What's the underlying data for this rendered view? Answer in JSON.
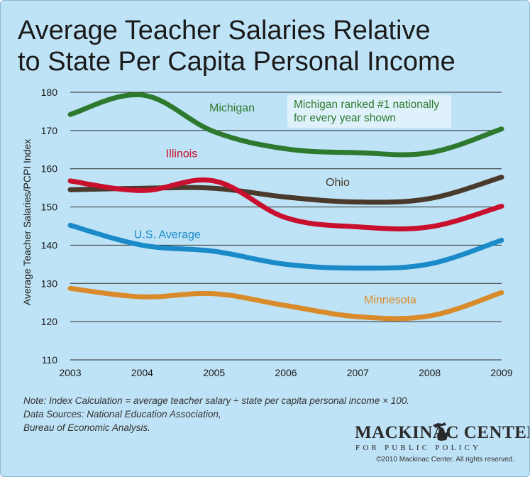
{
  "title_lines": [
    "Average Teacher Salaries Relative",
    "to State Per Capita Personal Income"
  ],
  "callout_lines": [
    "Michigan ranked #1 nationally",
    "for every year shown"
  ],
  "note_lines": [
    "Note: Index Calculation = average teacher salary ÷ state per capita personal income × 100.",
    "Data Sources: National Education Association,",
    "Bureau of Economic Analysis."
  ],
  "logo": {
    "name": "MACKINAC CENTER",
    "sub": "FOR PUBLIC POLICY",
    "copyright": "©2010 Mackinac Center. All rights reserved."
  },
  "chart_data": {
    "type": "line",
    "title": "Average Teacher Salaries Relative to State Per Capita Personal Income",
    "xlabel": "",
    "ylabel": "Average Teacher Salaries/PCPI Index",
    "x": [
      "2003",
      "2004",
      "2005",
      "2006",
      "2007",
      "2008",
      "2009"
    ],
    "ylim": [
      110,
      180
    ],
    "yticks": [
      110,
      120,
      130,
      140,
      150,
      160,
      170,
      180
    ],
    "grid": true,
    "legend": "none (series labeled inline)",
    "series": [
      {
        "name": "Michigan",
        "color": "#2d7a2f",
        "values": [
          174.2,
          179.3,
          169.7,
          165.2,
          164.2,
          164.2,
          170.4
        ]
      },
      {
        "name": "Illinois",
        "color": "#c8102e",
        "values": [
          156.8,
          154.3,
          156.8,
          147.2,
          144.8,
          144.8,
          150.2
        ]
      },
      {
        "name": "Ohio",
        "color": "#4a3a2c",
        "values": [
          154.5,
          154.9,
          154.9,
          152.6,
          151.3,
          152.2,
          157.8
        ]
      },
      {
        "name": "U.S. Average",
        "color": "#1b8ac9",
        "values": [
          145.2,
          140.0,
          138.4,
          135.0,
          134.0,
          135.1,
          141.3
        ]
      },
      {
        "name": "Minnesota",
        "color": "#d98b2b",
        "values": [
          128.7,
          126.5,
          127.3,
          124.2,
          121.3,
          121.5,
          127.6
        ]
      }
    ]
  }
}
